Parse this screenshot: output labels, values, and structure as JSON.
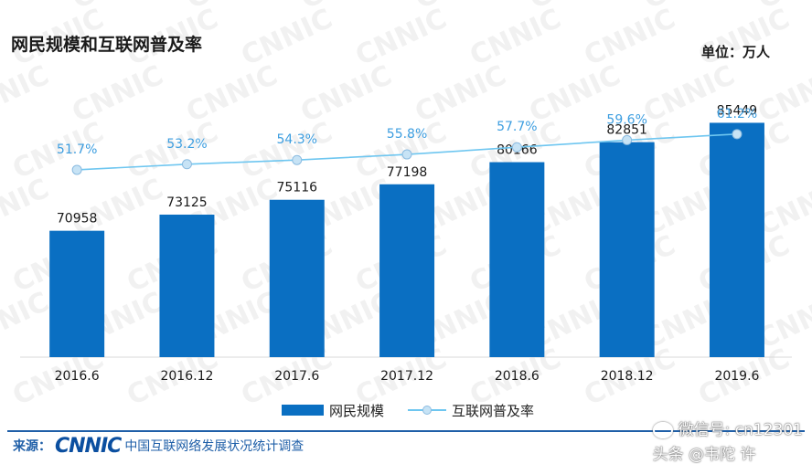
{
  "title": "网民规模和互联网普及率",
  "unit_label": "单位：万人",
  "watermark_text": "CNNIC",
  "legend": {
    "bar_label": "网民规模",
    "line_label": "互联网普及率"
  },
  "source": {
    "label": "来源：",
    "logo": "CNNIC",
    "text": "中国互联网络发展状况统计调查"
  },
  "overlay": {
    "text": "微信号: cn12301",
    "credit": "头条 @韦陀 许"
  },
  "colors": {
    "bar": "#0a6fc2",
    "line": "#6ec6f0",
    "marker": "#c7e3f5",
    "percent_label": "#3d9ee0"
  },
  "chart_data": {
    "type": "bar",
    "categories": [
      "2016.6",
      "2016.12",
      "2017.6",
      "2017.12",
      "2018.6",
      "2018.12",
      "2019.6"
    ],
    "series": [
      {
        "name": "网民规模",
        "type": "bar",
        "values": [
          70958,
          73125,
          75116,
          77198,
          80166,
          82851,
          85449
        ]
      },
      {
        "name": "互联网普及率",
        "type": "line",
        "values": [
          51.7,
          53.2,
          54.3,
          55.8,
          57.7,
          59.6,
          61.2
        ],
        "labels": [
          "51.7%",
          "53.2%",
          "54.3%",
          "55.8%",
          "57.7%",
          "59.6%",
          "61.2%"
        ]
      }
    ],
    "title": "网民规模和互联网普及率",
    "xlabel": "",
    "ylabel": "",
    "legend_position": "bottom-center",
    "grid": false
  }
}
